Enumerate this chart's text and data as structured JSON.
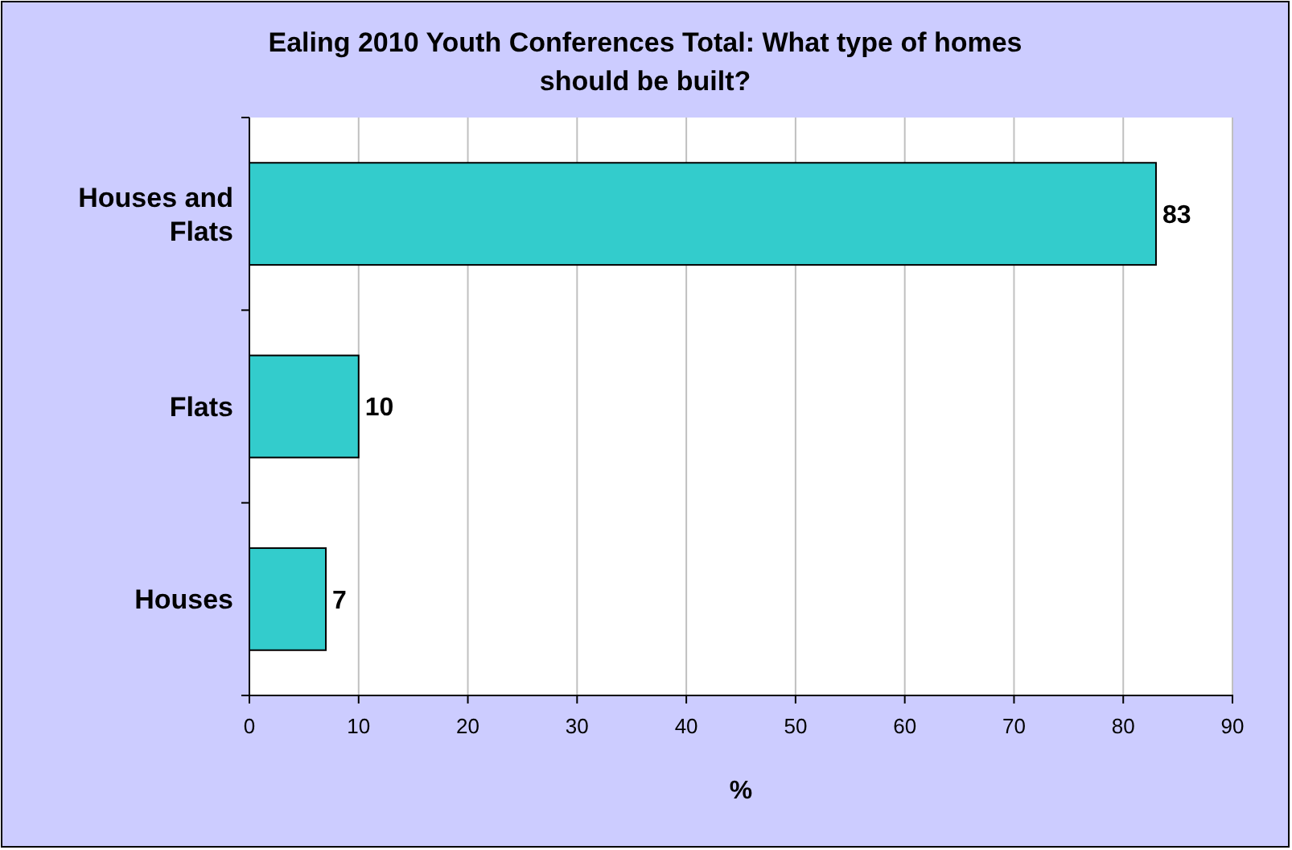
{
  "chart_data": {
    "type": "bar",
    "orientation": "horizontal",
    "title": "Ealing 2010 Youth Conferences Total:  What type of homes should be built?",
    "categories": [
      "Houses and Flats",
      "Flats",
      "Houses"
    ],
    "values": [
      83,
      10,
      7
    ],
    "color": "#33cccc",
    "xlim": [
      0,
      90
    ],
    "xticks": [
      0,
      10,
      20,
      30,
      40,
      50,
      60,
      70,
      80,
      90
    ],
    "xlabel": "%",
    "grid": "x",
    "data_labels": true
  }
}
